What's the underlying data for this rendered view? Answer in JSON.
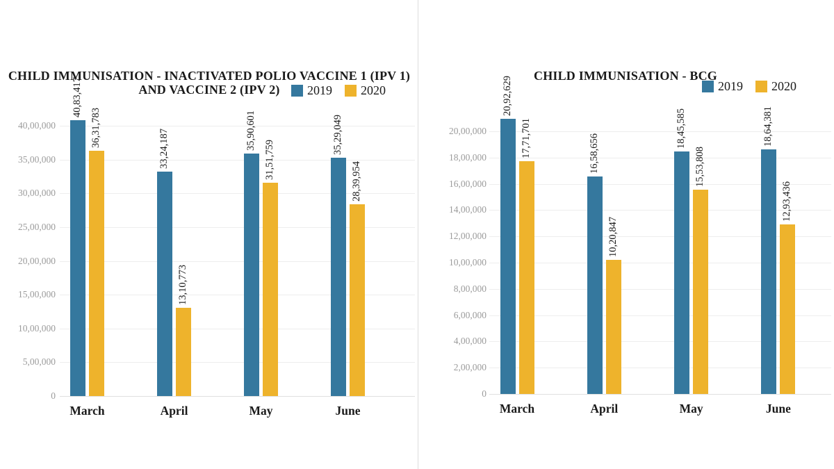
{
  "colors": {
    "series_2019": "#35789e",
    "series_2020": "#eeb32c",
    "grid": "#ededed",
    "grid_baseline": "#e0e0e0",
    "axis_text": "#9b9b9b",
    "text": "#1a1a1a",
    "divider": "#dddddd",
    "background": "#ffffff"
  },
  "chart_data": [
    {
      "type": "bar",
      "title": "CHILD IMMUNISATION - INACTIVATED POLIO VACCINE 1 (IPV 1) AND VACCINE 2 (IPV 2)",
      "title_lines": [
        "CHILD IMMUNISATION - INACTIVATED POLIO VACCINE 1 (IPV 1)",
        "AND VACCINE 2 (IPV 2)"
      ],
      "categories": [
        "March",
        "April",
        "May",
        "June"
      ],
      "series": [
        {
          "name": "2019",
          "color": "#35789e",
          "values": [
            4083417,
            3324187,
            3590601,
            3529049
          ],
          "value_labels": [
            "40,83,417",
            "33,24,187",
            "35,90,601",
            "35,29,049"
          ]
        },
        {
          "name": "2020",
          "color": "#eeb32c",
          "values": [
            3631783,
            1310773,
            3151759,
            2839954
          ],
          "value_labels": [
            "36,31,783",
            "13,10,773",
            "31,51,759",
            "28,39,954"
          ]
        }
      ],
      "xlabel": "",
      "ylabel": "",
      "ylim": [
        0,
        4000000
      ],
      "grid": true,
      "legend_position": "top-right",
      "y_axis": {
        "max": 4000000,
        "ticks": [
          {
            "v": 0,
            "label": "0"
          },
          {
            "v": 500000,
            "label": "5,00,000"
          },
          {
            "v": 1000000,
            "label": "10,00,000"
          },
          {
            "v": 1500000,
            "label": "15,00,000"
          },
          {
            "v": 2000000,
            "label": "20,00,000"
          },
          {
            "v": 2500000,
            "label": "25,00,000"
          },
          {
            "v": 3000000,
            "label": "30,00,000"
          },
          {
            "v": 3500000,
            "label": "35,00,000"
          },
          {
            "v": 4000000,
            "label": "40,00,000"
          }
        ]
      }
    },
    {
      "type": "bar",
      "title": "CHILD IMMUNISATION - BCG",
      "title_lines": [
        "CHILD IMMUNISATION - BCG"
      ],
      "categories": [
        "March",
        "April",
        "May",
        "June"
      ],
      "series": [
        {
          "name": "2019",
          "color": "#35789e",
          "values": [
            2092629,
            1658656,
            1845585,
            1864381
          ],
          "value_labels": [
            "20,92,629",
            "16,58,656",
            "18,45,585",
            "18,64,381"
          ]
        },
        {
          "name": "2020",
          "color": "#eeb32c",
          "values": [
            1771701,
            1020847,
            1553808,
            1293436
          ],
          "value_labels": [
            "17,71,701",
            "10,20,847",
            "15,53,808",
            "12,93,436"
          ]
        }
      ],
      "xlabel": "",
      "ylabel": "",
      "ylim": [
        0,
        2000000
      ],
      "grid": true,
      "legend_position": "top-right",
      "y_axis": {
        "max": 2000000,
        "ticks": [
          {
            "v": 0,
            "label": "0"
          },
          {
            "v": 200000,
            "label": "2,00,000"
          },
          {
            "v": 400000,
            "label": "4,00,000"
          },
          {
            "v": 600000,
            "label": "6,00,000"
          },
          {
            "v": 800000,
            "label": "8,00,000"
          },
          {
            "v": 1000000,
            "label": "10,00,000"
          },
          {
            "v": 1200000,
            "label": "12,00,000"
          },
          {
            "v": 1400000,
            "label": "14,00,000"
          },
          {
            "v": 1600000,
            "label": "16,00,000"
          },
          {
            "v": 1800000,
            "label": "18,00,000"
          },
          {
            "v": 2000000,
            "label": "20,00,000"
          }
        ]
      }
    }
  ]
}
